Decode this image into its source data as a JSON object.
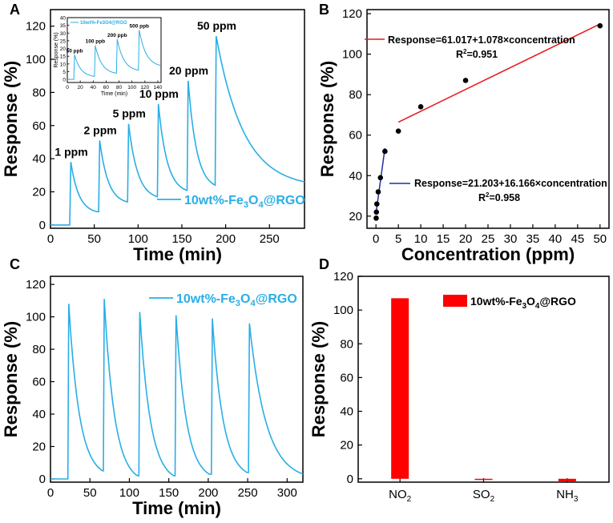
{
  "chart_data": [
    {
      "panel": "A",
      "type": "line",
      "xlabel": "Time (min)",
      "ylabel": "Response (%)",
      "xlim": [
        0,
        290
      ],
      "ylim": [
        -2,
        130
      ],
      "xticks": [
        0,
        50,
        100,
        150,
        200,
        250
      ],
      "yticks": [
        0,
        20,
        40,
        60,
        80,
        100,
        120
      ],
      "color": "#29aee6",
      "legend": {
        "base": "10wt%-Fe",
        "sub": "3",
        "mid": "O",
        "sub2": "4",
        "tail": "@RGO"
      },
      "events": [
        {
          "label": "1 ppm",
          "on": 22,
          "off": 53,
          "peak": 38,
          "end": 8
        },
        {
          "label": "2 ppm",
          "on": 55,
          "off": 87,
          "peak": 51,
          "end": 14
        },
        {
          "label": "5 ppm",
          "on": 88,
          "off": 122,
          "peak": 61,
          "end": 17
        },
        {
          "label": "10 ppm",
          "on": 122,
          "off": 155,
          "peak": 73,
          "end": 21
        },
        {
          "label": "20 ppm",
          "on": 156,
          "off": 188,
          "peak": 87,
          "end": 24
        },
        {
          "label": "50 ppm",
          "on": 188,
          "off": 290,
          "peak": 114,
          "end": 26
        }
      ],
      "inset": {
        "title": "10wt%-Fe3O4@RGO",
        "xlabel": "Time (min)",
        "ylabel": "Response (%)",
        "xlim": [
          0,
          145
        ],
        "ylim": [
          -2,
          40
        ],
        "xticks": [
          0,
          20,
          40,
          60,
          80,
          100,
          120,
          140
        ],
        "yticks": [
          0,
          5,
          10,
          15,
          20,
          25,
          30,
          35,
          40
        ],
        "events": [
          {
            "label": "50 ppb",
            "on": 10,
            "off": 42,
            "peak": 16,
            "end": 2
          },
          {
            "label": "100 ppb",
            "on": 42,
            "off": 76,
            "peak": 22,
            "end": 4
          },
          {
            "label": "200 ppb",
            "on": 76,
            "off": 110,
            "peak": 26,
            "end": 6
          },
          {
            "label": "500 ppb",
            "on": 110,
            "off": 145,
            "peak": 32,
            "end": 9
          }
        ]
      }
    },
    {
      "panel": "B",
      "type": "scatter",
      "xlabel": "Concentration (ppm)",
      "ylabel": "Response (%)",
      "xlim": [
        -2,
        52
      ],
      "ylim": [
        14,
        122
      ],
      "xticks": [
        0,
        5,
        10,
        15,
        20,
        25,
        30,
        35,
        40,
        45,
        50
      ],
      "yticks": [
        20,
        40,
        60,
        80,
        100,
        120
      ],
      "points": [
        {
          "x": 0.05,
          "y": 19
        },
        {
          "x": 0.1,
          "y": 22
        },
        {
          "x": 0.2,
          "y": 26
        },
        {
          "x": 0.5,
          "y": 32
        },
        {
          "x": 1,
          "y": 39
        },
        {
          "x": 2,
          "y": 52
        },
        {
          "x": 5,
          "y": 62
        },
        {
          "x": 10,
          "y": 74
        },
        {
          "x": 20,
          "y": 87
        },
        {
          "x": 50,
          "y": 114
        }
      ],
      "fits": [
        {
          "name": "high",
          "color": "#e8191b",
          "intercept": 61.017,
          "slope": 1.078,
          "x": [
            5,
            50
          ],
          "equation": "Response=61.017+1.078×concentration",
          "r2": "=0.951"
        },
        {
          "name": "low",
          "color": "#1f2f9e",
          "intercept": 21.203,
          "slope": 16.166,
          "x": [
            0,
            2
          ],
          "equation": "Response=21.203+16.166×concentration",
          "r2": "=0.958"
        }
      ]
    },
    {
      "panel": "C",
      "type": "line",
      "xlabel": "Time (min)",
      "ylabel": "Response (%)",
      "xlim": [
        0,
        320
      ],
      "ylim": [
        -2,
        125
      ],
      "xticks": [
        0,
        50,
        100,
        150,
        200,
        250,
        300
      ],
      "yticks": [
        0,
        20,
        40,
        60,
        80,
        100,
        120
      ],
      "color": "#29aee6",
      "legend": {
        "base": "10wt%-Fe",
        "sub": "3",
        "mid": "O",
        "sub2": "4",
        "tail": "@RGO"
      },
      "events": [
        {
          "on": 22,
          "off": 66,
          "peak": 108,
          "end": 5
        },
        {
          "on": 67,
          "off": 110,
          "peak": 111,
          "end": 2
        },
        {
          "on": 112,
          "off": 156,
          "peak": 103,
          "end": 2
        },
        {
          "on": 158,
          "off": 201,
          "peak": 101,
          "end": 3
        },
        {
          "on": 204,
          "off": 249,
          "peak": 99,
          "end": 4
        },
        {
          "on": 251,
          "off": 320,
          "peak": 96,
          "end": 3
        }
      ]
    },
    {
      "panel": "D",
      "type": "bar",
      "ylabel": "Response (%)",
      "ylim": [
        -2,
        120
      ],
      "yticks": [
        0,
        20,
        40,
        60,
        80,
        100,
        120
      ],
      "color": "#ff0000",
      "legend": {
        "base": "10wt%-Fe",
        "sub": "3",
        "mid": "O",
        "sub2": "4",
        "tail": "@RGO"
      },
      "categories": [
        {
          "base": "NO",
          "sub": "2",
          "value": 107
        },
        {
          "base": "SO",
          "sub": "2",
          "value": -0.5
        },
        {
          "base": "NH",
          "sub": "3",
          "value": -1.5
        }
      ]
    }
  ]
}
